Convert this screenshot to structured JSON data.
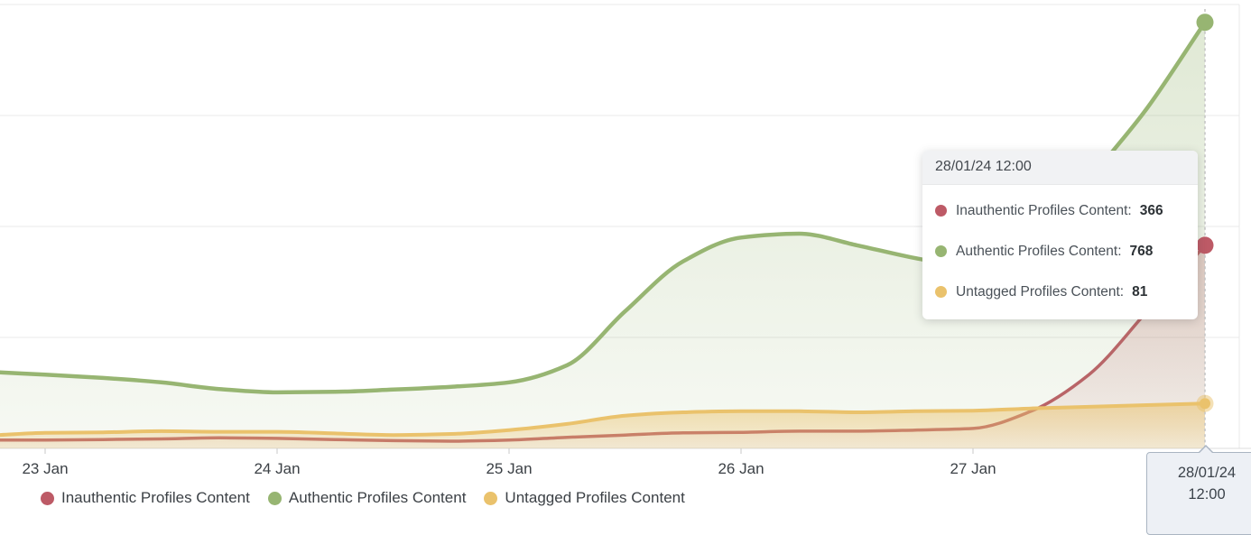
{
  "tooltip": {
    "header": "28/01/24 12:00",
    "rows": [
      {
        "label": "Inauthentic Profiles Content:",
        "value": "366",
        "color": "#bd5a66"
      },
      {
        "label": "Authentic Profiles Content:",
        "value": "768",
        "color": "#97b572"
      },
      {
        "label": "Untagged Profiles Content:",
        "value": "81",
        "color": "#eac26c"
      }
    ]
  },
  "legend": {
    "items": [
      {
        "label": "Inauthentic Profiles Content",
        "color": "#bd5a66"
      },
      {
        "label": "Authentic Profiles Content",
        "color": "#97b572"
      },
      {
        "label": "Untagged Profiles Content",
        "color": "#eac26c"
      }
    ]
  },
  "x_axis": {
    "tick_labels": [
      "23 Jan",
      "24 Jan",
      "25 Jan",
      "26 Jan",
      "27 Jan"
    ],
    "pointer_label": {
      "line1": "28/01/24",
      "line2": "12:00"
    }
  },
  "chart_data": {
    "type": "area",
    "title": "",
    "xlabel": "",
    "ylabel": "",
    "x_unit": "days_since_23_Jan_12:00_tick",
    "x": [
      -0.2,
      0,
      0.25,
      0.5,
      0.75,
      1,
      1.25,
      1.5,
      1.75,
      2,
      2.25,
      2.5,
      2.75,
      3,
      3.25,
      3.5,
      3.75,
      4,
      4.25,
      4.5,
      4.75,
      5
    ],
    "x_tick_positions": [
      0,
      1,
      2,
      3,
      4,
      5
    ],
    "x_tick_labels": [
      "23 Jan",
      "24 Jan",
      "25 Jan",
      "26 Jan",
      "27 Jan",
      "28/01/24 12:00"
    ],
    "ylim": [
      0,
      800
    ],
    "gridline_values": [
      200,
      400,
      600,
      800
    ],
    "grid": true,
    "legend_position": "bottom-left",
    "highlight": {
      "x": 5,
      "label": "28/01/24 12:00",
      "values": {
        "Inauthentic Profiles Content": 366,
        "Authentic Profiles Content": 768,
        "Untagged Profiles Content": 81
      }
    },
    "series": [
      {
        "name": "Inauthentic Profiles Content",
        "color": "#bd5a66",
        "values": [
          15,
          15,
          16,
          17,
          19,
          18,
          16,
          14,
          13,
          15,
          20,
          24,
          28,
          29,
          31,
          31,
          33,
          36,
          67,
          133,
          247,
          366
        ]
      },
      {
        "name": "Authentic Profiles Content",
        "color": "#97b572",
        "values": [
          137,
          133,
          127,
          119,
          107,
          101,
          102,
          106,
          111,
          119,
          150,
          247,
          337,
          380,
          387,
          366,
          343,
          325,
          312,
          480,
          613,
          768
        ]
      },
      {
        "name": "Untagged Profiles Content",
        "color": "#eac26c",
        "values": [
          24,
          28,
          29,
          31,
          30,
          30,
          27,
          24,
          26,
          33,
          44,
          59,
          65,
          67,
          67,
          65,
          67,
          68,
          72,
          75,
          78,
          81
        ]
      }
    ]
  },
  "colors": {
    "inauthentic": "#bd5a66",
    "authentic": "#97b572",
    "untagged": "#eac26c",
    "gridline": "#e9e9e9",
    "axis_line": "#dcdcdc",
    "tick": "#c9c9c9",
    "pointer_dash": "#c6c6c6",
    "pointer_box_bg": "#edf0f5",
    "pointer_box_border": "#aab5c2"
  }
}
